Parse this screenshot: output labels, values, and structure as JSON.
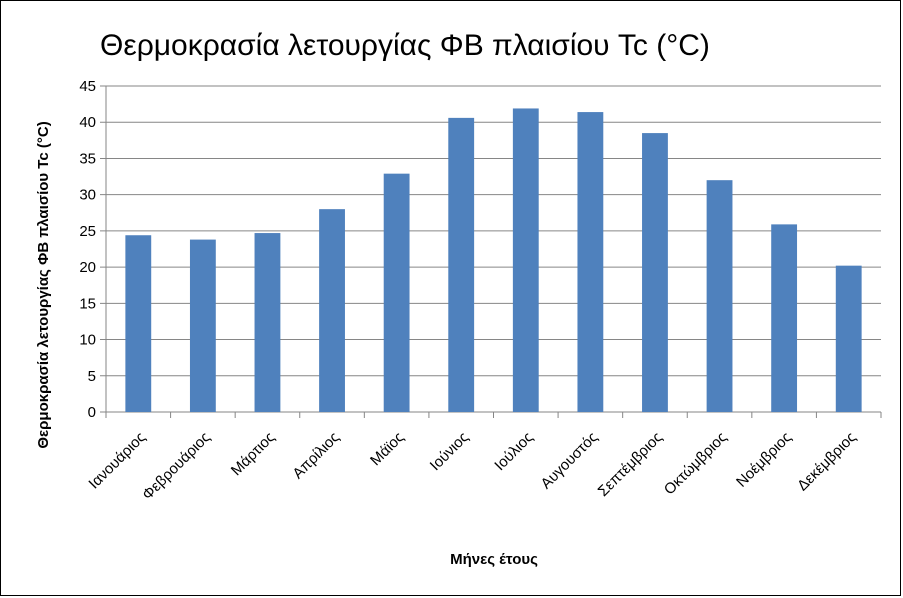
{
  "chart_data": {
    "type": "bar",
    "title": "Θερμοκρασία λετουργίας ΦΒ πλαισίου Tc (°C)",
    "xlabel": "Μήνες έτους",
    "ylabel": "Θερμοκρασία λετουργίας ΦΒ πλαισίου Tc (°C)",
    "categories": [
      "Ιανουάριος",
      "Φεβρουάριος",
      "Μάρτιος",
      "Απρίλιος",
      "Μάϊος",
      "Ιούνιος",
      "Ιούλιος",
      "Αυγουστός",
      "Σεπτέμβριος",
      "Οκτώμβριος",
      "Νοέμβριος",
      "Δεκέμβριος"
    ],
    "values": [
      24.4,
      23.8,
      24.7,
      28.0,
      32.9,
      40.6,
      41.9,
      41.4,
      38.5,
      32.0,
      25.9,
      20.2
    ],
    "ylim": [
      0,
      45
    ],
    "yticks": [
      0,
      5,
      10,
      15,
      20,
      25,
      30,
      35,
      40,
      45
    ],
    "grid": true,
    "legend": "none",
    "colors": {
      "bar": "#4F81BD",
      "grid": "#868686",
      "axis": "#868686"
    }
  }
}
